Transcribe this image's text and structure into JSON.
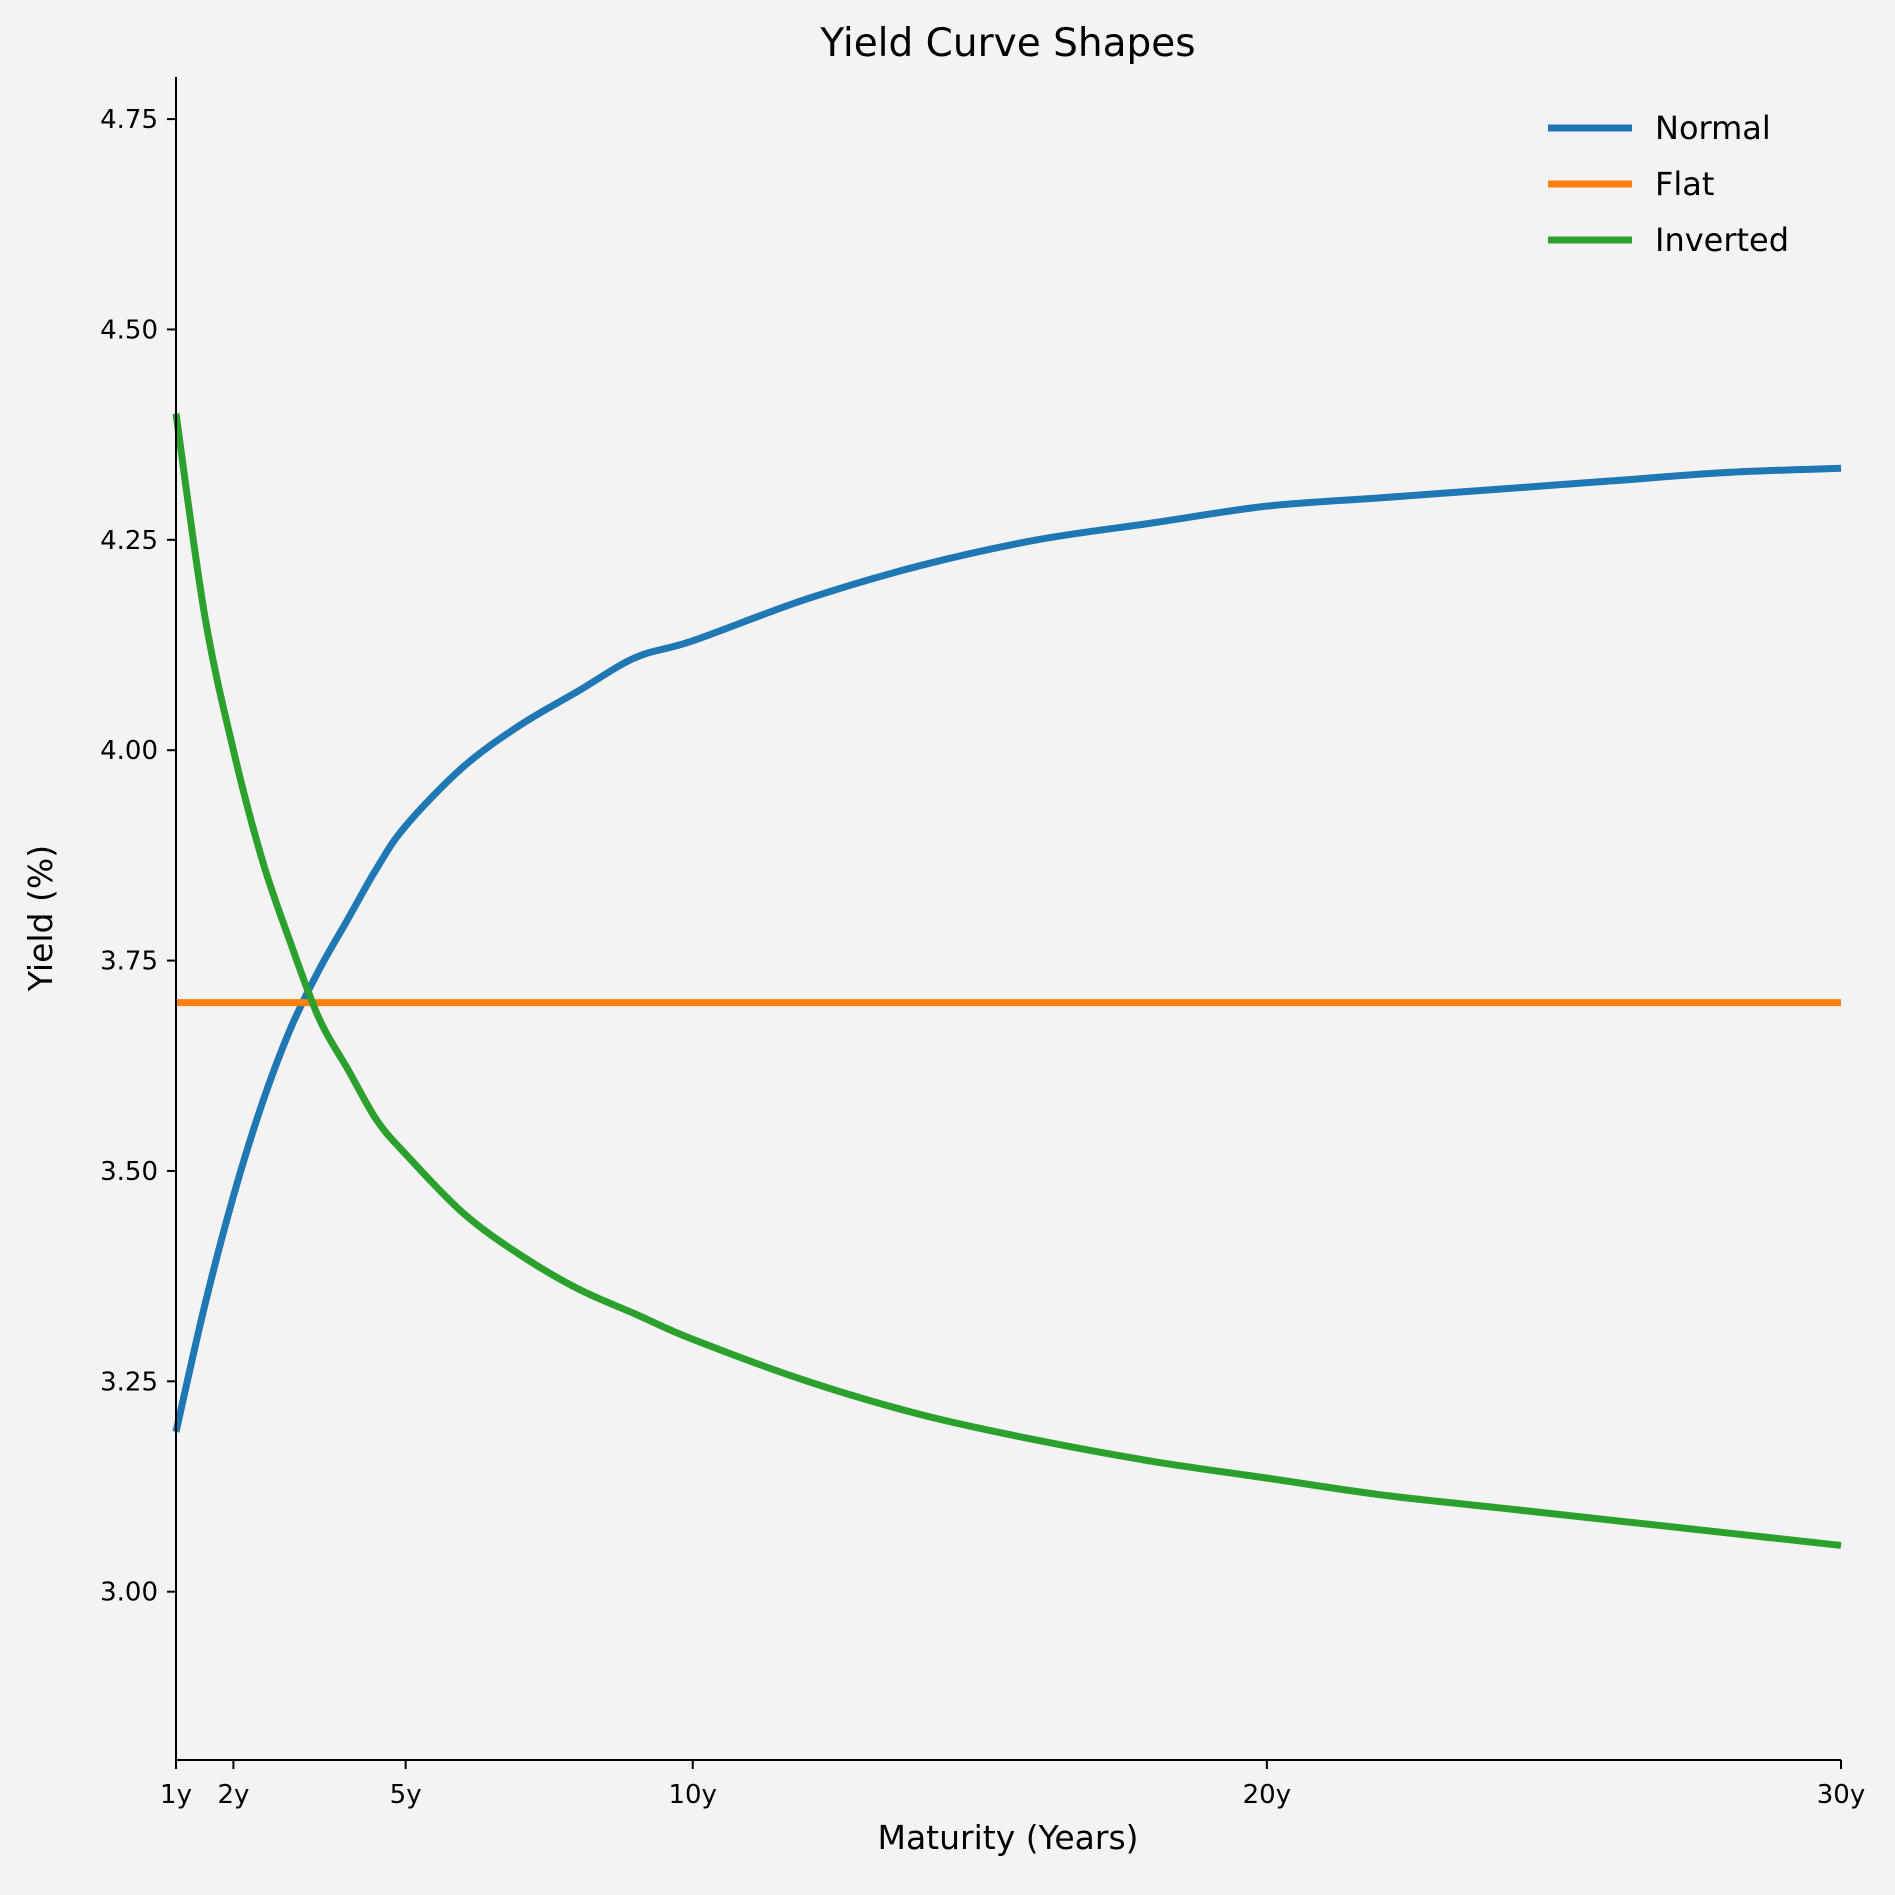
{
  "chart_data": {
    "type": "line",
    "title": "Yield Curve Shapes",
    "xlabel": "Maturity (Years)",
    "ylabel": "Yield (%)",
    "xlim": [
      1,
      30
    ],
    "ylim": [
      2.8,
      4.8
    ],
    "x_ticks": [
      {
        "value": 1,
        "label": "1y"
      },
      {
        "value": 2,
        "label": "2y"
      },
      {
        "value": 5,
        "label": "5y"
      },
      {
        "value": 10,
        "label": "10y"
      },
      {
        "value": 20,
        "label": "20y"
      },
      {
        "value": 30,
        "label": "30y"
      }
    ],
    "y_ticks": [
      {
        "value": 3.0,
        "label": "3.00"
      },
      {
        "value": 3.25,
        "label": "3.25"
      },
      {
        "value": 3.5,
        "label": "3.50"
      },
      {
        "value": 3.75,
        "label": "3.75"
      },
      {
        "value": 4.0,
        "label": "4.00"
      },
      {
        "value": 4.25,
        "label": "4.25"
      },
      {
        "value": 4.5,
        "label": "4.50"
      },
      {
        "value": 4.75,
        "label": "4.75"
      }
    ],
    "grid": false,
    "legend_position": "top-right",
    "x": [
      1,
      1.5,
      2,
      2.5,
      3,
      3.5,
      4,
      4.5,
      5,
      6,
      7,
      8,
      9,
      10,
      12,
      14,
      16,
      18,
      20,
      22,
      24,
      26,
      28,
      30
    ],
    "series": [
      {
        "name": "Normal",
        "color": "#1f77b4",
        "values": [
          3.19,
          3.34,
          3.47,
          3.58,
          3.67,
          3.74,
          3.8,
          3.86,
          3.91,
          3.98,
          4.03,
          4.07,
          4.11,
          4.13,
          4.18,
          4.22,
          4.25,
          4.27,
          4.29,
          4.3,
          4.31,
          4.32,
          4.33,
          4.335
        ]
      },
      {
        "name": "Flat",
        "color": "#ff7f0e",
        "values": [
          3.7,
          3.7,
          3.7,
          3.7,
          3.7,
          3.7,
          3.7,
          3.7,
          3.7,
          3.7,
          3.7,
          3.7,
          3.7,
          3.7,
          3.7,
          3.7,
          3.7,
          3.7,
          3.7,
          3.7,
          3.7,
          3.7,
          3.7,
          3.7
        ]
      },
      {
        "name": "Inverted",
        "color": "#2ca02c",
        "values": [
          4.4,
          4.16,
          4.0,
          3.87,
          3.77,
          3.68,
          3.62,
          3.56,
          3.52,
          3.45,
          3.4,
          3.36,
          3.33,
          3.3,
          3.25,
          3.21,
          3.18,
          3.155,
          3.135,
          3.115,
          3.1,
          3.085,
          3.07,
          3.055
        ]
      }
    ]
  }
}
